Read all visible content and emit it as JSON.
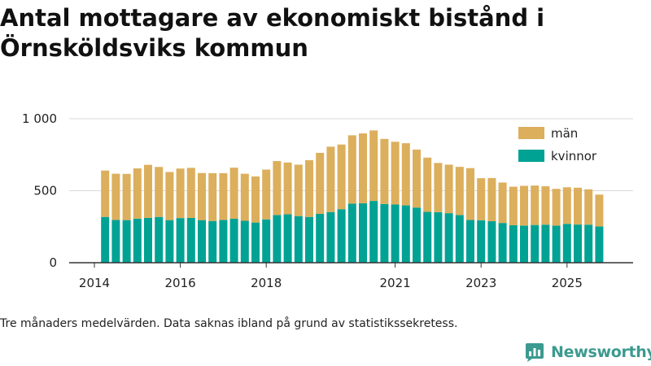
{
  "title": "Antal mottagare av ekonomiskt bistånd i Örnsköldsviks kommun",
  "footnote": "Tre månaders medelvärden. Data saknas ibland på grund av statistikssekretess.",
  "brand": {
    "name": "Newsworthy",
    "icon": "newsworthy-logo-icon",
    "color": "#3c9a8f"
  },
  "colors": {
    "men": "#dcaf5d",
    "women": "#00a294",
    "axis": "#333333",
    "grid": "#d9d9d9"
  },
  "chart_data": {
    "type": "bar",
    "stacked": true,
    "title": "Antal mottagare av ekonomiskt bistånd i Örnsköldsviks kommun",
    "xlabel": "",
    "ylabel": "",
    "ylim": [
      0,
      1000
    ],
    "yticks": [
      0,
      500,
      1000
    ],
    "ytick_labels": [
      "0",
      "500",
      "1 000"
    ],
    "xlim": [
      2014.0,
      2026.25
    ],
    "xticks": [
      2014,
      2016,
      2018,
      2021,
      2023,
      2025
    ],
    "xtick_labels": [
      "2014",
      "2016",
      "2018",
      "2021",
      "2023",
      "2025"
    ],
    "legend": {
      "position": "top-right",
      "entries": [
        "män",
        "kvinnor"
      ]
    },
    "categories": [
      "2014-Q2",
      "2014-Q3",
      "2014-Q4",
      "2015-Q1",
      "2015-Q2",
      "2015-Q3",
      "2015-Q4",
      "2016-Q1",
      "2016-Q2",
      "2016-Q3",
      "2016-Q4",
      "2017-Q1",
      "2017-Q2",
      "2017-Q3",
      "2017-Q4",
      "2018-Q1",
      "2018-Q2",
      "2018-Q3",
      "2018-Q4",
      "2019-Q1",
      "2019-Q2",
      "2019-Q3",
      "2019-Q4",
      "2020-Q1",
      "2020-Q2",
      "2020-Q3",
      "2020-Q4",
      "2021-Q1",
      "2021-Q2",
      "2021-Q3",
      "2021-Q4",
      "2022-Q1",
      "2022-Q2",
      "2022-Q3",
      "2022-Q4",
      "2023-Q1",
      "2023-Q2",
      "2023-Q3",
      "2023-Q4",
      "2024-Q1",
      "2024-Q2",
      "2024-Q3",
      "2024-Q4",
      "2025-Q1",
      "2025-Q2",
      "2025-Q3",
      "2025-Q4"
    ],
    "x": [
      2014.25,
      2014.5,
      2014.75,
      2015.0,
      2015.25,
      2015.5,
      2015.75,
      2016.0,
      2016.25,
      2016.5,
      2016.75,
      2017.0,
      2017.25,
      2017.5,
      2017.75,
      2018.0,
      2018.25,
      2018.5,
      2018.75,
      2019.0,
      2019.25,
      2019.5,
      2019.75,
      2020.0,
      2020.25,
      2020.5,
      2020.75,
      2021.0,
      2021.25,
      2021.5,
      2021.75,
      2022.0,
      2022.25,
      2022.5,
      2022.75,
      2023.0,
      2023.25,
      2023.5,
      2023.75,
      2024.0,
      2024.25,
      2024.5,
      2024.75,
      2025.0,
      2025.25,
      2025.5,
      2025.75
    ],
    "series": [
      {
        "name": "kvinnor",
        "values": [
          318,
          297,
          296,
          306,
          311,
          318,
          296,
          310,
          311,
          296,
          290,
          297,
          305,
          291,
          279,
          301,
          331,
          336,
          324,
          318,
          339,
          352,
          372,
          411,
          413,
          429,
          408,
          404,
          398,
          383,
          353,
          351,
          344,
          331,
          297,
          295,
          288,
          276,
          260,
          258,
          262,
          264,
          258,
          270,
          265,
          264,
          252
        ]
      },
      {
        "name": "män",
        "values": [
          322,
          321,
          321,
          349,
          369,
          347,
          334,
          344,
          348,
          327,
          332,
          325,
          355,
          327,
          320,
          346,
          375,
          360,
          357,
          394,
          424,
          454,
          449,
          474,
          485,
          490,
          452,
          436,
          432,
          403,
          377,
          342,
          337,
          335,
          360,
          292,
          300,
          281,
          268,
          276,
          274,
          267,
          255,
          254,
          256,
          246,
          221
        ]
      }
    ]
  }
}
